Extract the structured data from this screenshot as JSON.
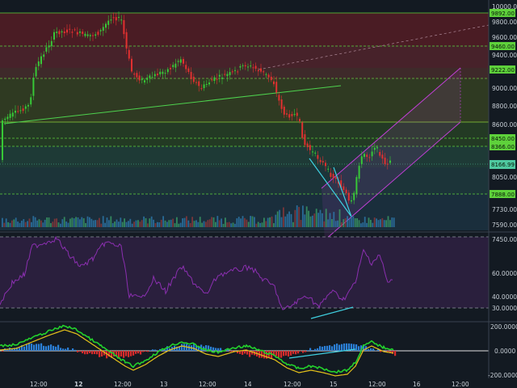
{
  "price_axis": {
    "ticks": [
      "10000.00",
      "9800.00",
      "9600.00",
      "9400.00",
      "9000.00",
      "8800.00",
      "8600.00",
      "8050.00",
      "7730.00",
      "7590.00",
      "7450.00"
    ],
    "highlighted": [
      {
        "label": "9892.00",
        "value": 9892,
        "color": "#5ed13b"
      },
      {
        "label": "9460.00",
        "value": 9460,
        "color": "#5ed13b"
      },
      {
        "label": "9222.00",
        "value": 9222,
        "color": "#5ed13b"
      },
      {
        "label": "8450.00",
        "value": 8450,
        "color": "#5ed13b"
      },
      {
        "label": "8366.00",
        "value": 8366,
        "color": "#5ed13b"
      },
      {
        "label": "8166.99",
        "value": 8166.99,
        "color": "#4fc9a0"
      },
      {
        "label": "7888.00",
        "value": 7888,
        "color": "#5ed13b"
      }
    ]
  },
  "time_axis": {
    "labels": [
      "12:00",
      "12",
      "12:00",
      "13",
      "12:00",
      "14",
      "12:00",
      "15",
      "12:00",
      "16",
      "12:00"
    ],
    "bold": [
      false,
      true,
      false,
      false,
      false,
      false,
      false,
      false,
      false,
      false,
      false
    ]
  },
  "rsi_axis": {
    "ticks": [
      "60.0000",
      "40.0000",
      "30.0000"
    ]
  },
  "macd_axis": {
    "ticks": [
      "200.0000",
      "0.0000",
      "-200.0000"
    ]
  },
  "colors": {
    "background": "#131a22",
    "bull": "#37c837",
    "bear": "#e03030",
    "trendline": "#4ed24e",
    "channel": "#c13fd6",
    "divergence": "#3fd0e0",
    "rsi": "#8b2fb0",
    "macd_line": "#23d12c",
    "signal_line": "#e6c21a"
  }
}
